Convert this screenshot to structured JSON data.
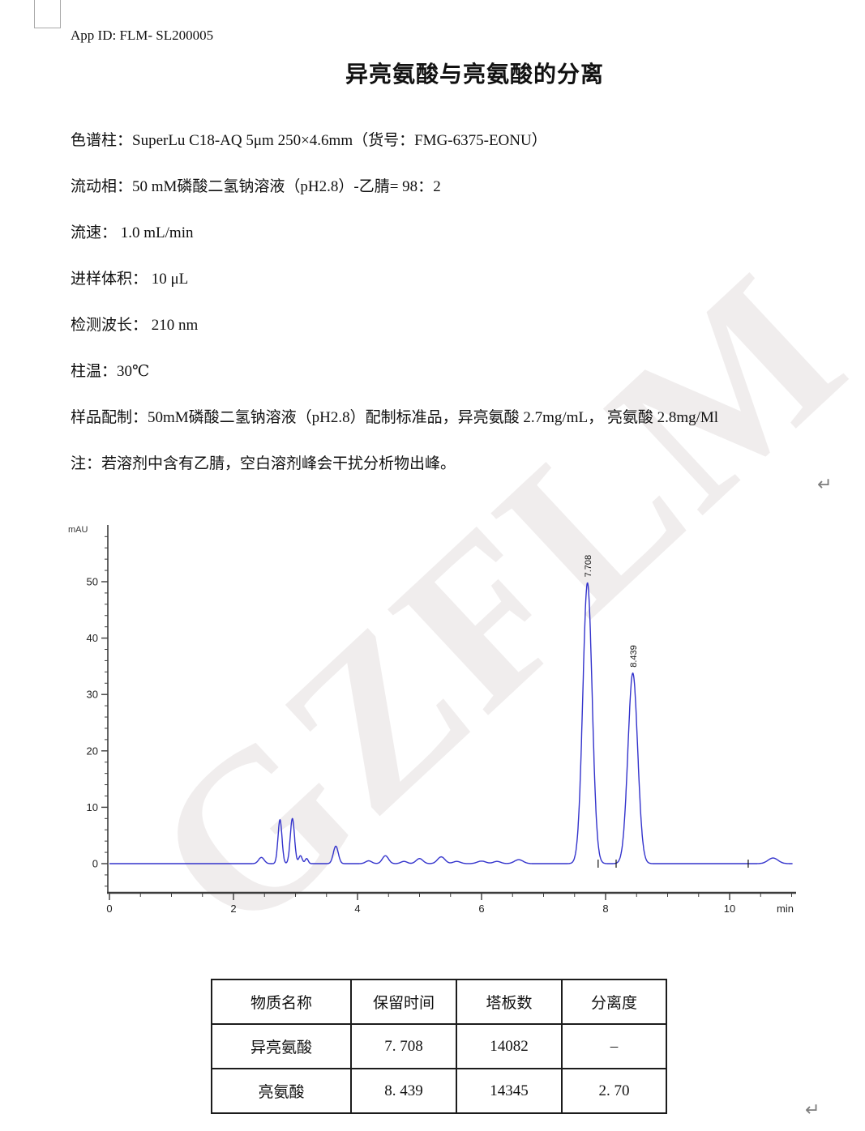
{
  "page": {
    "app_id": "App ID: FLM- SL200005",
    "title": "异亮氨酸与亮氨酸的分离",
    "watermark": "GZFLM",
    "return_mark": "↵"
  },
  "params": [
    "色谱柱：SuperLu C18-AQ 5μm  250×4.6mm（货号：FMG-6375-EONU）",
    "流动相：50 mM磷酸二氢钠溶液（pH2.8）-乙腈= 98：2",
    "流速： 1.0 mL/min",
    "进样体积： 10 μL",
    "检测波长： 210 nm",
    "柱温：30℃",
    "样品配制：50mM磷酸二氢钠溶液（pH2.8）配制标准品，异亮氨酸 2.7mg/mL， 亮氨酸 2.8mg/Ml",
    "注：若溶剂中含有乙腈，空白溶剂峰会干扰分析物出峰。"
  ],
  "chart_data": {
    "type": "line",
    "title": "",
    "y_axis": {
      "label": "mAU",
      "majors": [
        0,
        10,
        20,
        30,
        40,
        50
      ],
      "minor_step": 2,
      "minor_range": [
        -4,
        58
      ],
      "range": [
        -5.2,
        60
      ]
    },
    "x_axis": {
      "label": "min",
      "majors": [
        0,
        2,
        4,
        6,
        8,
        10
      ],
      "minor_step": 0.5,
      "minor_range": [
        0,
        11
      ],
      "range": [
        0,
        11.07
      ]
    },
    "trace_color": "#3333cc",
    "axis_color": "#3c3c3c",
    "peaks": [
      {
        "c": 2.45,
        "h": 1.1,
        "w": 0.045
      },
      {
        "c": 2.75,
        "h": 7.8,
        "w": 0.032
      },
      {
        "c": 2.95,
        "h": 8.0,
        "w": 0.034
      },
      {
        "c": 3.08,
        "h": 1.4,
        "w": 0.028
      },
      {
        "c": 3.18,
        "h": 0.9,
        "w": 0.025
      },
      {
        "c": 3.65,
        "h": 3.1,
        "w": 0.04
      },
      {
        "c": 4.18,
        "h": 0.5,
        "w": 0.05
      },
      {
        "c": 4.45,
        "h": 1.4,
        "w": 0.05
      },
      {
        "c": 4.75,
        "h": 0.4,
        "w": 0.05
      },
      {
        "c": 5.0,
        "h": 0.9,
        "w": 0.055
      },
      {
        "c": 5.35,
        "h": 1.2,
        "w": 0.06
      },
      {
        "c": 5.6,
        "h": 0.4,
        "w": 0.06
      },
      {
        "c": 6.0,
        "h": 0.45,
        "w": 0.07
      },
      {
        "c": 6.25,
        "h": 0.4,
        "w": 0.06
      },
      {
        "c": 6.6,
        "h": 0.7,
        "w": 0.07
      },
      {
        "c": 7.708,
        "h": 49.8,
        "w": 0.075,
        "label": "7.708"
      },
      {
        "c": 8.439,
        "h": 33.8,
        "w": 0.078,
        "label": "8.439"
      },
      {
        "c": 10.7,
        "h": 1.0,
        "w": 0.08
      }
    ],
    "integration_marks": [
      7.88,
      8.17,
      10.3
    ]
  },
  "table": {
    "headers": [
      "物质名称",
      "保留时间",
      "塔板数",
      "分离度"
    ],
    "rows": [
      [
        "异亮氨酸",
        "7. 708",
        "14082",
        "–"
      ],
      [
        "亮氨酸",
        "8. 439",
        "14345",
        "2. 70"
      ]
    ]
  }
}
